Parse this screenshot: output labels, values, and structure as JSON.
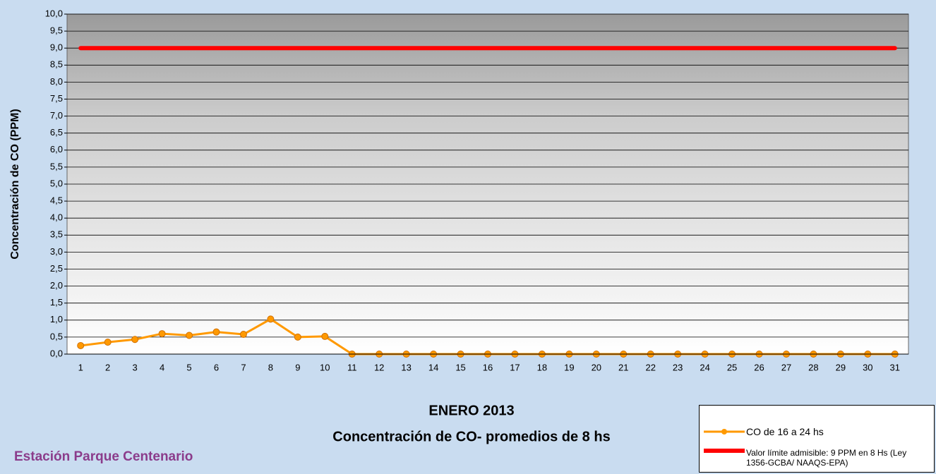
{
  "chart_data": {
    "type": "line",
    "title": "ENERO 2013",
    "subtitle": "Concentración de CO- promedios de 8 hs",
    "ylabel": "Concentración de CO (PPM)",
    "note": "Estación Parque Centenario",
    "categories": [
      "1",
      "2",
      "3",
      "4",
      "5",
      "6",
      "7",
      "8",
      "9",
      "10",
      "11",
      "12",
      "13",
      "14",
      "15",
      "16",
      "17",
      "18",
      "19",
      "20",
      "21",
      "22",
      "23",
      "24",
      "25",
      "26",
      "27",
      "28",
      "29",
      "30",
      "31"
    ],
    "series": [
      {
        "name": "CO de 16 a 24 hs",
        "color": "#ff9900",
        "marker": "circle",
        "line_width": 3,
        "values": [
          0.25,
          0.35,
          0.43,
          0.6,
          0.55,
          0.65,
          0.58,
          1.03,
          0.5,
          0.52,
          0,
          0,
          0,
          0,
          0,
          0,
          0,
          0,
          0,
          0,
          0,
          0,
          0,
          0,
          0,
          0,
          0,
          0,
          0,
          0,
          0
        ]
      },
      {
        "name": "Valor límite admisible: 9 PPM en 8 Hs (Ley 1356-GCBA/ NAAQS-EPA)",
        "color": "#ff0000",
        "marker": "none",
        "line_width": 6,
        "values": [
          9,
          9,
          9,
          9,
          9,
          9,
          9,
          9,
          9,
          9,
          9,
          9,
          9,
          9,
          9,
          9,
          9,
          9,
          9,
          9,
          9,
          9,
          9,
          9,
          9,
          9,
          9,
          9,
          9,
          9,
          9
        ]
      }
    ],
    "ylim": [
      0,
      10
    ],
    "yticks": [
      {
        "value": 0,
        "label": "0,0"
      },
      {
        "value": 0.5,
        "label": "0,5"
      },
      {
        "value": 1,
        "label": "1,0"
      },
      {
        "value": 1.5,
        "label": "1,5"
      },
      {
        "value": 2,
        "label": "2,0"
      },
      {
        "value": 2.5,
        "label": "2,5"
      },
      {
        "value": 3,
        "label": "3,0"
      },
      {
        "value": 3.5,
        "label": "3,5"
      },
      {
        "value": 4,
        "label": "4,0"
      },
      {
        "value": 4.5,
        "label": "4,5"
      },
      {
        "value": 5,
        "label": "5,0"
      },
      {
        "value": 5.5,
        "label": "5,5"
      },
      {
        "value": 6,
        "label": "6,0"
      },
      {
        "value": 6.5,
        "label": "6,5"
      },
      {
        "value": 7,
        "label": "7,0"
      },
      {
        "value": 7.5,
        "label": "7,5"
      },
      {
        "value": 8,
        "label": "8,0"
      },
      {
        "value": 8.5,
        "label": "8,5"
      },
      {
        "value": 9,
        "label": "9,0"
      },
      {
        "value": 9.5,
        "label": "9,5"
      },
      {
        "value": 10,
        "label": "10,0"
      }
    ],
    "grid": true
  }
}
